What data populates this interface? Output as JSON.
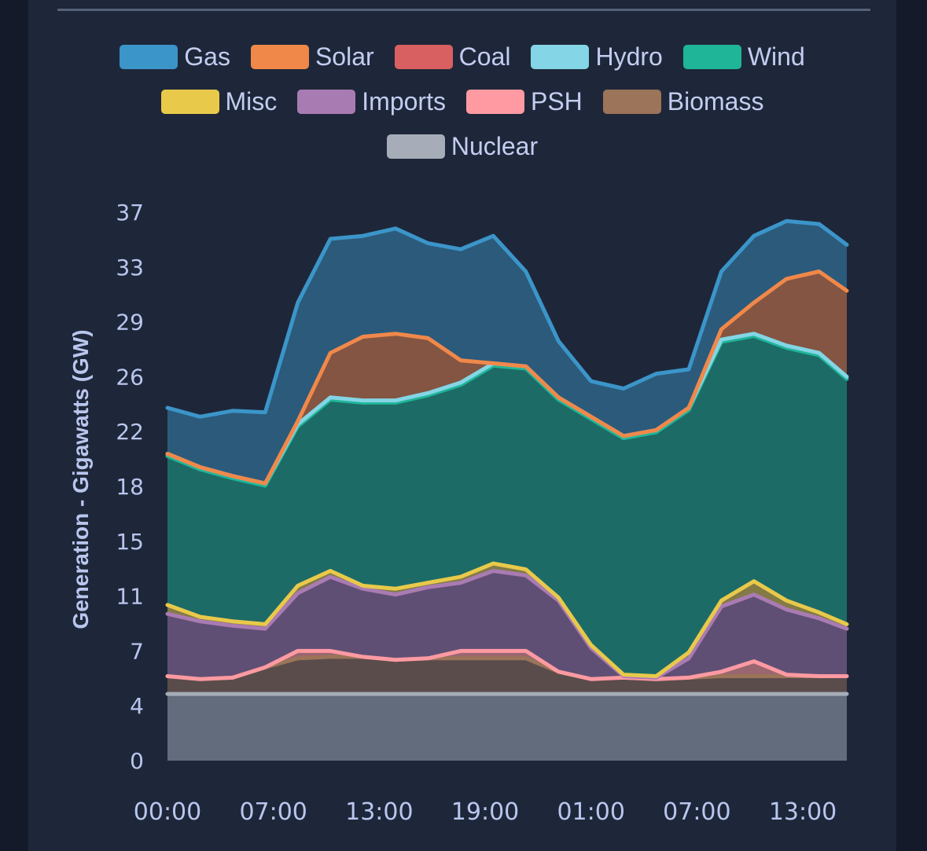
{
  "chart_data": {
    "type": "area",
    "stacked": true,
    "ylabel": "Generation - Gigawatts (GW)",
    "xlabel": "",
    "ylim": [
      0,
      37
    ],
    "y_ticks": [
      {
        "v": 0,
        "label": "0"
      },
      {
        "v": 3.7,
        "label": "4"
      },
      {
        "v": 7.4,
        "label": "7"
      },
      {
        "v": 11.1,
        "label": "11"
      },
      {
        "v": 14.8,
        "label": "15"
      },
      {
        "v": 18.5,
        "label": "18"
      },
      {
        "v": 22.2,
        "label": "22"
      },
      {
        "v": 25.9,
        "label": "26"
      },
      {
        "v": 29.6,
        "label": "29"
      },
      {
        "v": 33.3,
        "label": "33"
      },
      {
        "v": 37,
        "label": "37"
      }
    ],
    "xlim_hours": [
      0,
      41.7
    ],
    "x_ticks": [
      {
        "v": 0,
        "label": "00:00"
      },
      {
        "v": 6.5,
        "label": "07:00"
      },
      {
        "v": 13,
        "label": "13:00"
      },
      {
        "v": 19.5,
        "label": "19:00"
      },
      {
        "v": 26,
        "label": "01:00"
      },
      {
        "v": 32.5,
        "label": "07:00"
      },
      {
        "v": 39,
        "label": "13:00"
      }
    ],
    "x_hours": [
      0,
      2,
      4,
      6,
      8,
      10,
      12,
      14,
      16,
      18,
      20,
      22,
      24,
      26,
      28,
      30,
      32,
      34,
      36,
      38,
      40,
      41.7
    ],
    "legend_position": "top",
    "legend": [
      "Gas",
      "Solar",
      "Coal",
      "Hydro",
      "Wind",
      "Misc",
      "Imports",
      "PSH",
      "Biomass",
      "Nuclear"
    ],
    "series": [
      {
        "name": "Nuclear",
        "color": "#a6adb8",
        "fill": "#636c7c",
        "values": [
          4.5,
          4.5,
          4.5,
          4.5,
          4.5,
          4.5,
          4.5,
          4.5,
          4.5,
          4.5,
          4.5,
          4.5,
          4.5,
          4.5,
          4.5,
          4.5,
          4.5,
          4.5,
          4.5,
          4.5,
          4.5,
          4.5
        ]
      },
      {
        "name": "Biomass",
        "color": "#9b7459",
        "fill": "#5a4c4b",
        "values": [
          1.2,
          1.0,
          1.1,
          1.8,
          2.4,
          2.5,
          2.5,
          2.3,
          2.4,
          2.4,
          2.4,
          2.4,
          1.5,
          1.0,
          1.1,
          1.0,
          1.1,
          1.2,
          1.2,
          1.2,
          1.2,
          1.2
        ]
      },
      {
        "name": "PSH",
        "color": "#ff9aa2",
        "fill": "#9a6670",
        "values": [
          0,
          0,
          0,
          0,
          0.5,
          0.4,
          0,
          0,
          0,
          0.5,
          0.5,
          0.5,
          0,
          0,
          0,
          0,
          0,
          0.3,
          1.0,
          0.1,
          0,
          0
        ]
      },
      {
        "name": "Imports",
        "color": "#a97bb3",
        "fill": "#604f74",
        "values": [
          4.2,
          3.9,
          3.5,
          2.6,
          3.9,
          5.0,
          4.6,
          4.4,
          4.8,
          4.6,
          5.4,
          5.1,
          4.8,
          2.1,
          0.1,
          0.1,
          1.3,
          4.4,
          4.5,
          4.4,
          3.9,
          3.2
        ]
      },
      {
        "name": "Misc",
        "color": "#e8c94a",
        "fill": "#837a46",
        "values": [
          0.6,
          0.3,
          0.3,
          0.3,
          0.5,
          0.4,
          0.2,
          0.4,
          0.3,
          0.4,
          0.5,
          0.4,
          0.2,
          0.2,
          0.1,
          0.1,
          0.4,
          0.4,
          0.9,
          0.6,
          0.4,
          0.3
        ]
      },
      {
        "name": "Wind",
        "color": "#1fb598",
        "fill": "#1d6b67",
        "values": [
          10.05,
          9.95,
          9.65,
          9.35,
          10.75,
          11.55,
          12.35,
          12.55,
          12.65,
          12.95,
          13.35,
          13.55,
          13.35,
          15.25,
          15.95,
          16.45,
          16.35,
          17.45,
          16.55,
          17.05,
          17.35,
          16.55
        ]
      },
      {
        "name": "Hydro",
        "color": "#84d5e5",
        "fill": "#4f8f9c",
        "values": [
          0.15,
          0.15,
          0.15,
          0.15,
          0.15,
          0.15,
          0.15,
          0.15,
          0.15,
          0.15,
          0.15,
          0.15,
          0.15,
          0.15,
          0.15,
          0.15,
          0.15,
          0.15,
          0.15,
          0.15,
          0.15,
          0.15
        ]
      },
      {
        "name": "Coal",
        "color": "#d96060",
        "fill": "#7c4147",
        "values": [
          0,
          0,
          0,
          0,
          0,
          0,
          0,
          0,
          0,
          0,
          0,
          0,
          0,
          0,
          0,
          0,
          0,
          0,
          0,
          0,
          0,
          0
        ]
      },
      {
        "name": "Solar",
        "color": "#f0884a",
        "fill": "#835542",
        "values": [
          0,
          0,
          0,
          0,
          0.2,
          3.0,
          4.3,
          4.5,
          3.7,
          1.5,
          0,
          0,
          0,
          0,
          0,
          0,
          0,
          0.7,
          2.1,
          4.5,
          5.5,
          5.8
        ]
      },
      {
        "name": "Gas",
        "color": "#3b95c9",
        "fill": "#2c5a7b",
        "values": [
          3.1,
          3.4,
          4.4,
          4.8,
          8.0,
          7.7,
          6.8,
          7.1,
          6.4,
          7.5,
          8.6,
          6.4,
          3.8,
          2.4,
          3.2,
          3.8,
          2.6,
          3.9,
          4.5,
          3.9,
          3.2,
          3.1
        ]
      }
    ]
  }
}
